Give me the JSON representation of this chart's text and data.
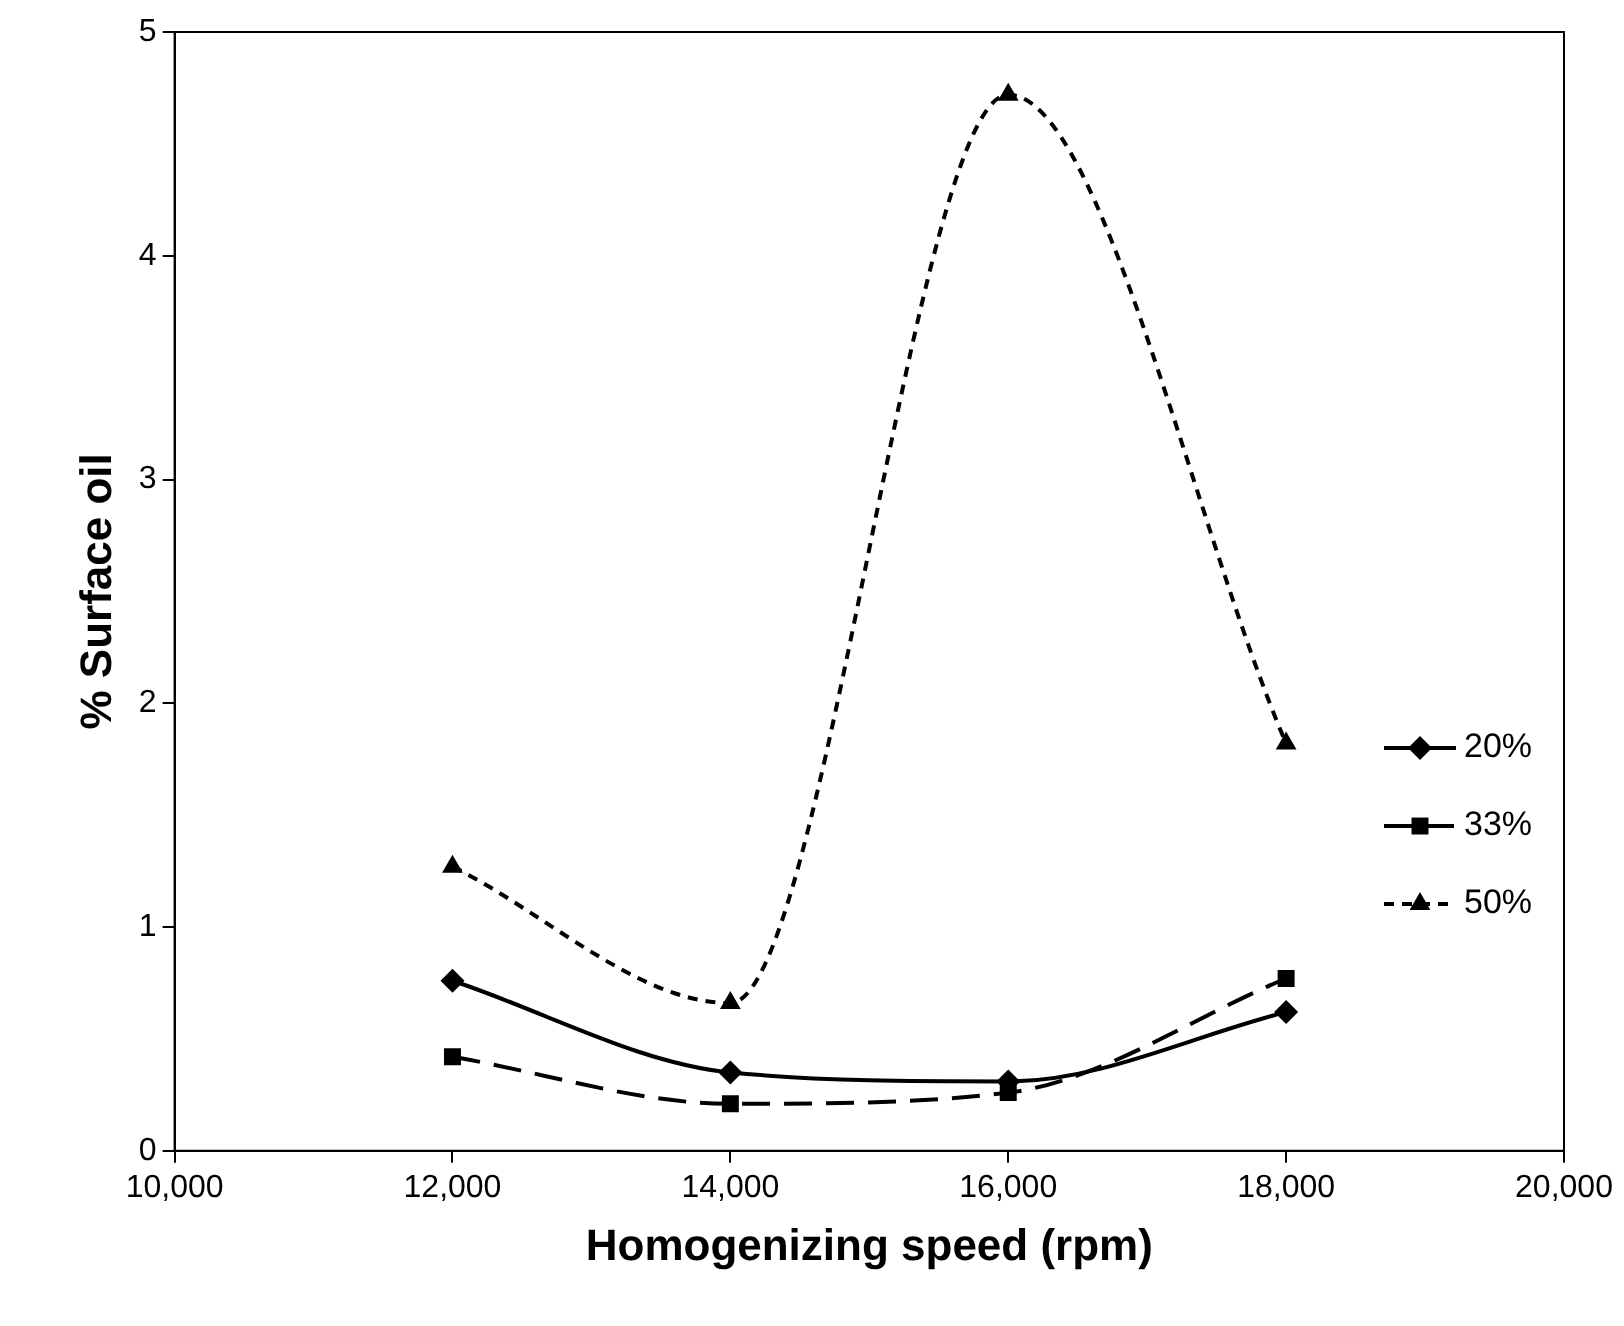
{
  "chart_data": {
    "type": "line",
    "xlabel": "Homogenizing speed (rpm)",
    "ylabel": "% Surface oil",
    "x": [
      12000,
      14000,
      16000,
      18000
    ],
    "xlim": [
      10000,
      20000
    ],
    "xticks": [
      {
        "value": 10000,
        "label": "10,000"
      },
      {
        "value": 12000,
        "label": "12,000"
      },
      {
        "value": 14000,
        "label": "14,000"
      },
      {
        "value": 16000,
        "label": "16,000"
      },
      {
        "value": 18000,
        "label": "18,000"
      },
      {
        "value": 20000,
        "label": "20,000"
      }
    ],
    "ylim": [
      0,
      5
    ],
    "yticks": [
      0,
      1,
      2,
      3,
      4,
      5
    ],
    "grid": false,
    "legend": "right",
    "series": [
      {
        "name": "20%",
        "color": "#000000",
        "values": [
          0.76,
          0.35,
          0.31,
          0.62
        ],
        "marker": "diamond",
        "line_style": "solid"
      },
      {
        "name": "33%",
        "color": "#000000",
        "values": [
          0.42,
          0.21,
          0.26,
          0.77
        ],
        "marker": "square",
        "line_style": "dashed"
      },
      {
        "name": "50%",
        "color": "#000000",
        "values": [
          1.27,
          0.66,
          4.72,
          1.82
        ],
        "marker": "triangle",
        "line_style": "dotted"
      }
    ]
  }
}
